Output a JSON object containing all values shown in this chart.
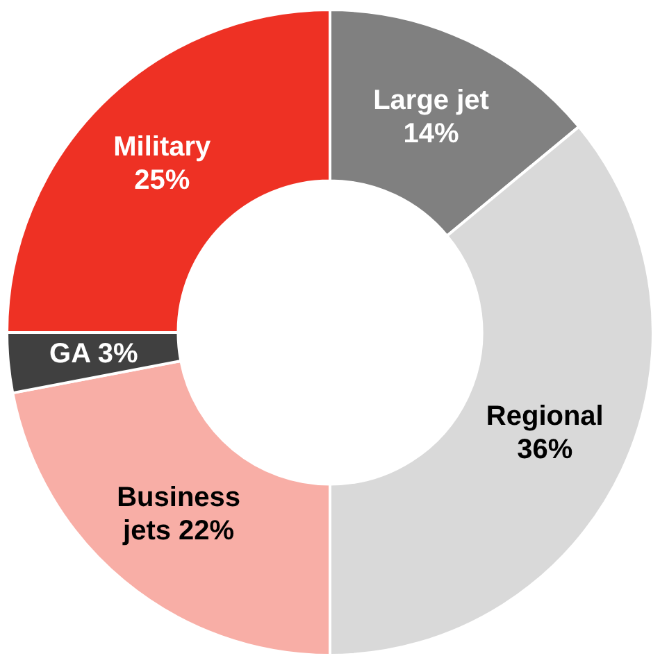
{
  "chart_data": {
    "type": "donut",
    "categories": [
      "Large jet",
      "Regional",
      "Business jets",
      "GA",
      "Military"
    ],
    "values": [
      14,
      36,
      22,
      3,
      25
    ],
    "colors": [
      "#808080",
      "#d9d9d9",
      "#f8aea6",
      "#404040",
      "#ee3124"
    ],
    "value_labels": [
      "14%",
      "36%",
      "22%",
      "3%",
      "25%"
    ],
    "legend": false
  }
}
